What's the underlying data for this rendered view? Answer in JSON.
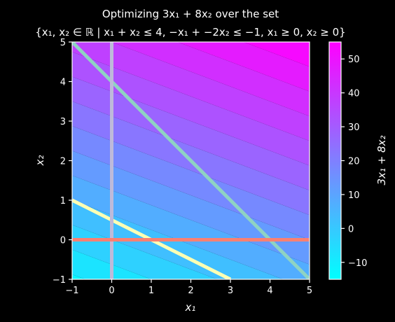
{
  "chart_data": {
    "type": "contour",
    "title_line1": "Optimizing 3x₁ + 8x₂ over the set",
    "title_line2": "{x₁, x₂ ∈ ℝ | x₁ + x₂ ≤ 4, −x₁ + −2x₂ ≤ −1, x₁ ≥ 0, x₂ ≥ 0}",
    "xlabel": "x₁",
    "ylabel": "x₂",
    "colorbar_label": "3x₁ + 8x₂",
    "objective": {
      "a": 3,
      "b": 8
    },
    "xlim": [
      -1,
      5
    ],
    "ylim": [
      -1,
      5
    ],
    "xticks": [
      -1,
      0,
      1,
      2,
      3,
      4,
      5
    ],
    "yticks": [
      -1,
      0,
      1,
      2,
      3,
      4,
      5
    ],
    "colorbar_ticks": [
      -10,
      0,
      10,
      20,
      30,
      40,
      50
    ],
    "colorbar_range": [
      -15,
      55
    ],
    "contour_levels": [
      -15,
      -10,
      -5,
      0,
      5,
      10,
      15,
      20,
      25,
      30,
      35,
      40,
      45,
      50,
      55
    ],
    "colormap": "cool",
    "colormap_endpoints": [
      "#00ffff",
      "#ff00ff"
    ],
    "constraint_lines": [
      {
        "constraint": "x₁ + x₂ ≤ 4",
        "points": [
          [
            -1,
            5
          ],
          [
            5,
            -1
          ]
        ],
        "color": "#8fd3c3"
      },
      {
        "constraint": "−x₁ + −2x₂ ≤ −1",
        "points": [
          [
            -1,
            1
          ],
          [
            3,
            -1
          ]
        ],
        "color": "#ffffb3"
      },
      {
        "constraint": "x₁ ≥ 0",
        "points": [
          [
            0,
            -1
          ],
          [
            0,
            5
          ]
        ],
        "color": "#bebada"
      },
      {
        "constraint": "x₂ ≥ 0",
        "points": [
          [
            -1,
            0
          ],
          [
            5,
            0
          ]
        ],
        "color": "#fa8072"
      }
    ]
  }
}
